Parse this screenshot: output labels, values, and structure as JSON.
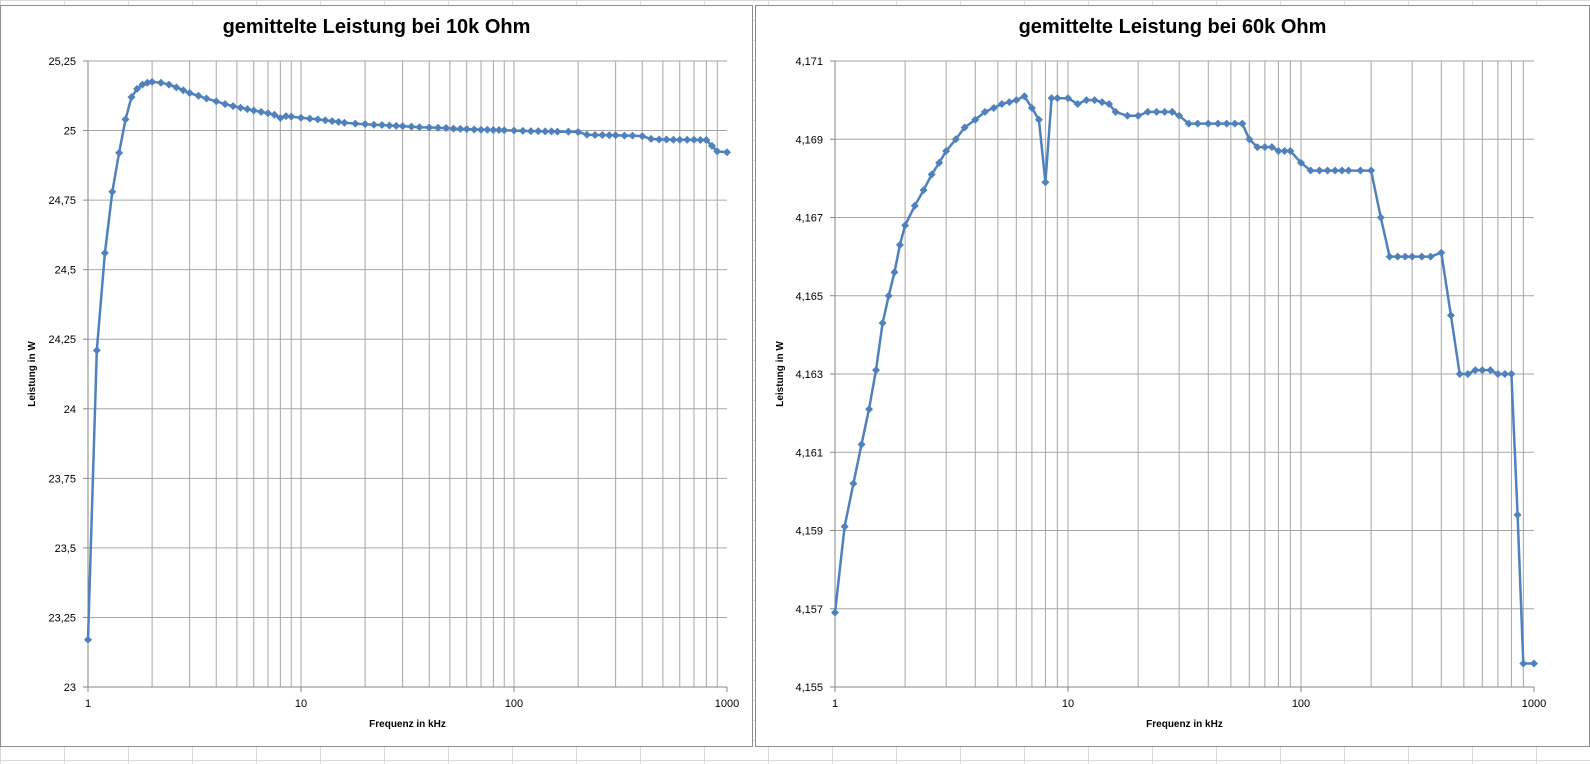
{
  "colors": {
    "series": "#4f81bd",
    "grid": "#a6a6a6",
    "axis": "#868686"
  },
  "chart_data": [
    {
      "type": "line",
      "title": "gemittelte Leistung bei 10k Ohm",
      "xlabel": "Frequenz in kHz",
      "ylabel": "Leistung in W",
      "x_scale": "log",
      "xlim": [
        1,
        1000
      ],
      "ylim": [
        23,
        25.25
      ],
      "x_ticks": [
        1,
        10,
        100,
        1000
      ],
      "x_tick_labels": [
        "1",
        "10",
        "100",
        "1000"
      ],
      "y_ticks": [
        23,
        23.25,
        23.5,
        23.75,
        24,
        24.25,
        24.5,
        24.75,
        25,
        25.25
      ],
      "y_tick_labels": [
        "23",
        "23,25",
        "23,5",
        "23,75",
        "24",
        "24,25",
        "24,5",
        "24,75",
        "25",
        "25,25"
      ],
      "grid": true,
      "marker": "diamond",
      "legend": "none",
      "x": [
        1,
        1.1,
        1.2,
        1.3,
        1.4,
        1.5,
        1.6,
        1.7,
        1.8,
        1.9,
        2,
        2.2,
        2.4,
        2.6,
        2.8,
        3,
        3.3,
        3.6,
        4,
        4.4,
        4.8,
        5.2,
        5.6,
        6,
        6.5,
        7,
        7.5,
        8,
        8.5,
        9,
        10,
        11,
        12,
        13,
        14,
        15,
        16,
        18,
        20,
        22,
        24,
        26,
        28,
        30,
        33,
        36,
        40,
        44,
        48,
        52,
        56,
        60,
        65,
        70,
        75,
        80,
        85,
        90,
        100,
        110,
        120,
        130,
        140,
        150,
        160,
        180,
        200,
        220,
        240,
        260,
        280,
        300,
        330,
        360,
        400,
        440,
        480,
        520,
        560,
        600,
        650,
        700,
        750,
        800,
        850,
        900,
        1000
      ],
      "values": [
        23.17,
        24.21,
        24.56,
        24.78,
        24.92,
        25.04,
        25.12,
        25.15,
        25.165,
        25.172,
        25.175,
        25.172,
        25.165,
        25.155,
        25.145,
        25.135,
        25.125,
        25.115,
        25.105,
        25.095,
        25.088,
        25.082,
        25.077,
        25.072,
        25.067,
        25.062,
        25.057,
        25.045,
        25.052,
        25.05,
        25.046,
        25.043,
        25.04,
        25.037,
        25.034,
        25.031,
        25.028,
        25.025,
        25.023,
        25.021,
        25.02,
        25.018,
        25.017,
        25.016,
        25.014,
        25.012,
        25.011,
        25.01,
        25.009,
        25.007,
        25.006,
        25.005,
        25.004,
        25.003,
        25.003,
        25.002,
        25.002,
        25.001,
        25,
        24.999,
        24.998,
        24.998,
        24.997,
        24.997,
        24.996,
        24.996,
        24.995,
        24.985,
        24.984,
        24.984,
        24.983,
        24.983,
        24.982,
        24.982,
        24.98,
        24.97,
        24.968,
        24.968,
        24.967,
        24.967,
        24.967,
        24.967,
        24.966,
        24.966,
        24.945,
        24.925,
        24.922
      ]
    },
    {
      "type": "line",
      "title": "gemittelte Leistung bei 60k Ohm",
      "xlabel": "Frequenz in kHz",
      "ylabel": "Leistung in W",
      "x_scale": "log",
      "xlim": [
        1,
        1000
      ],
      "ylim": [
        4.155,
        4.171
      ],
      "x_ticks": [
        1,
        10,
        100,
        1000
      ],
      "x_tick_labels": [
        "1",
        "10",
        "100",
        "1000"
      ],
      "y_ticks": [
        4.155,
        4.157,
        4.159,
        4.161,
        4.163,
        4.165,
        4.167,
        4.169,
        4.171
      ],
      "y_tick_labels": [
        "4,155",
        "4,157",
        "4,159",
        "4,161",
        "4,163",
        "4,165",
        "4,167",
        "4,169",
        "4,171"
      ],
      "grid": true,
      "marker": "diamond",
      "legend": "none",
      "x": [
        1,
        1.1,
        1.2,
        1.3,
        1.4,
        1.5,
        1.6,
        1.7,
        1.8,
        1.9,
        2,
        2.2,
        2.4,
        2.6,
        2.8,
        3,
        3.3,
        3.6,
        4,
        4.4,
        4.8,
        5.2,
        5.6,
        6,
        6.5,
        7,
        7.5,
        8,
        8.5,
        9,
        10,
        11,
        12,
        13,
        14,
        15,
        16,
        18,
        20,
        22,
        24,
        26,
        28,
        30,
        33,
        36,
        40,
        44,
        48,
        52,
        56,
        60,
        65,
        70,
        75,
        80,
        85,
        90,
        100,
        110,
        120,
        130,
        140,
        150,
        160,
        180,
        200,
        220,
        240,
        260,
        280,
        300,
        330,
        360,
        400,
        440,
        480,
        520,
        560,
        600,
        650,
        700,
        750,
        800,
        850,
        900,
        1000
      ],
      "values": [
        4.1569,
        4.1591,
        4.1602,
        4.1612,
        4.1621,
        4.1631,
        4.1643,
        4.165,
        4.1656,
        4.1663,
        4.1668,
        4.1673,
        4.1677,
        4.1681,
        4.1684,
        4.1687,
        4.169,
        4.1693,
        4.1695,
        4.1697,
        4.1698,
        4.1699,
        4.16995,
        4.17,
        4.1701,
        4.1698,
        4.1695,
        4.1679,
        4.17005,
        4.17005,
        4.17005,
        4.1699,
        4.17,
        4.17,
        4.16995,
        4.1699,
        4.1697,
        4.1696,
        4.1696,
        4.1697,
        4.1697,
        4.1697,
        4.1697,
        4.1696,
        4.1694,
        4.1694,
        4.1694,
        4.1694,
        4.1694,
        4.1694,
        4.1694,
        4.169,
        4.1688,
        4.1688,
        4.1688,
        4.1687,
        4.1687,
        4.1687,
        4.1684,
        4.1682,
        4.1682,
        4.1682,
        4.1682,
        4.1682,
        4.1682,
        4.1682,
        4.1682,
        4.167,
        4.166,
        4.166,
        4.166,
        4.166,
        4.166,
        4.166,
        4.1661,
        4.1645,
        4.163,
        4.163,
        4.1631,
        4.1631,
        4.1631,
        4.163,
        4.163,
        4.163,
        4.1594,
        4.1556,
        4.1556
      ]
    }
  ]
}
